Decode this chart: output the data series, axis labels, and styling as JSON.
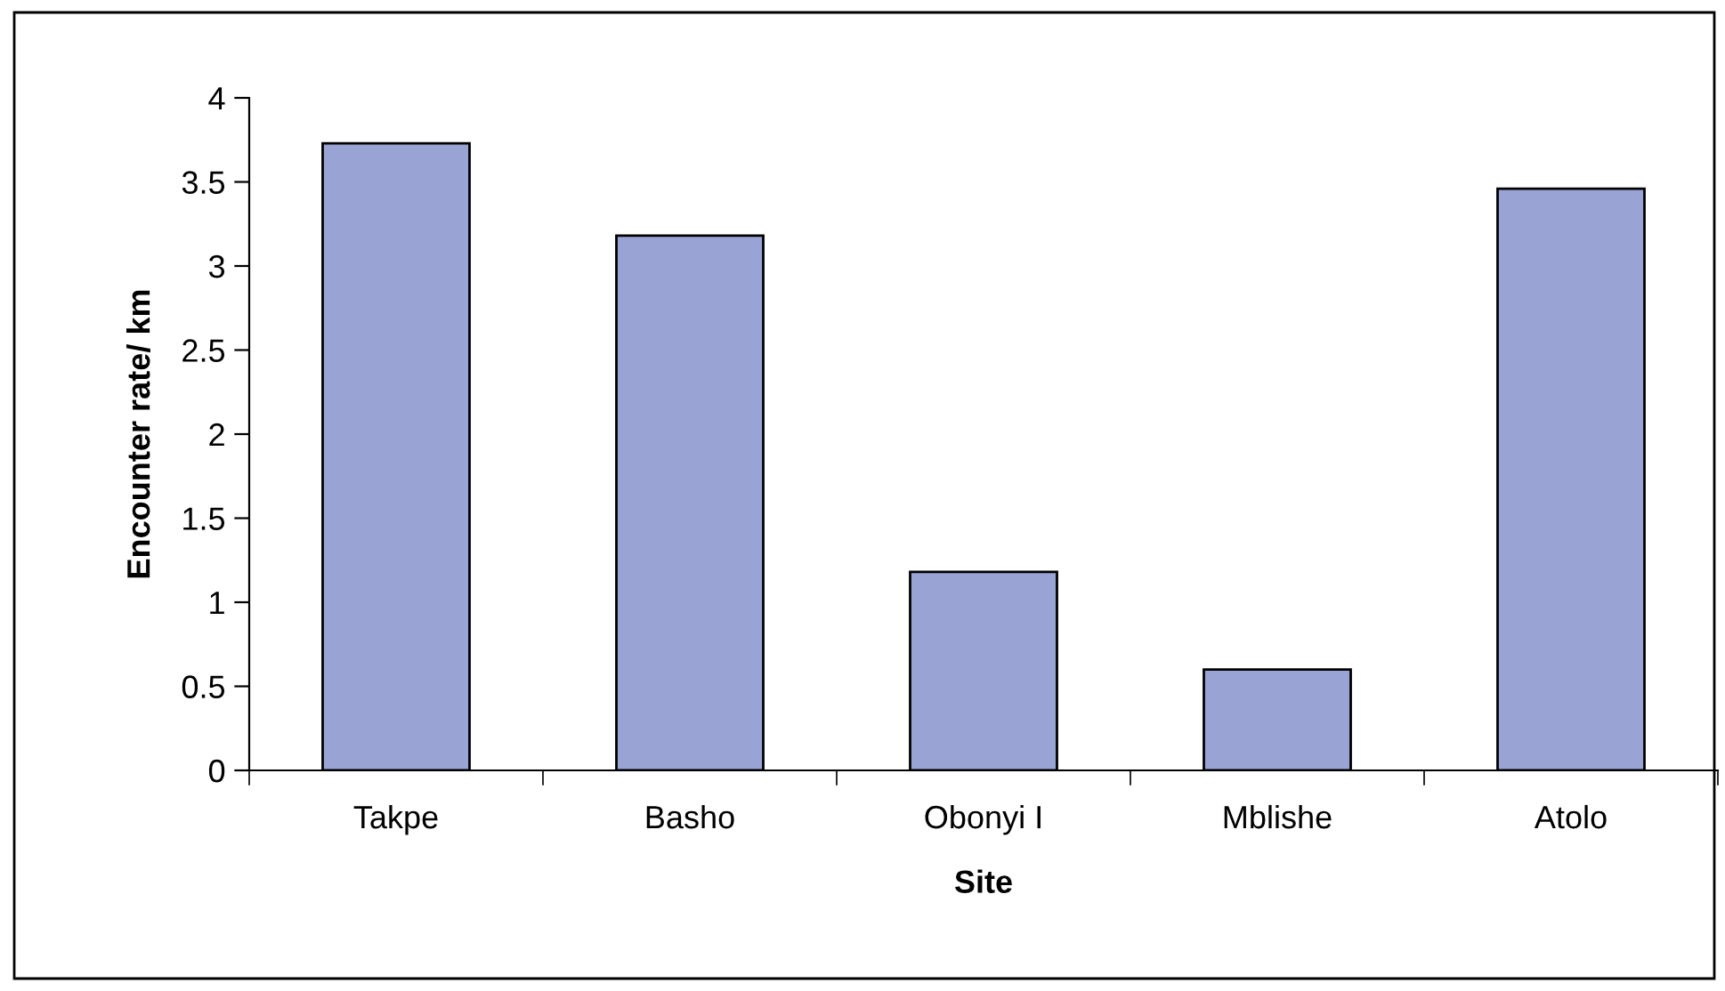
{
  "chart_data": {
    "type": "bar",
    "xlabel": "Site",
    "ylabel": "Encounter rate/ km",
    "categories": [
      "Takpe",
      "Basho",
      "Obonyi I",
      "Mblishe",
      "Atolo"
    ],
    "values": [
      3.73,
      3.18,
      1.18,
      0.6,
      3.46
    ],
    "color": "#99a4d4",
    "ylim": [
      0,
      4
    ],
    "yticks": [
      0,
      0.5,
      1,
      1.5,
      2,
      2.5,
      3,
      3.5,
      4
    ],
    "grid": false,
    "legend": false
  }
}
